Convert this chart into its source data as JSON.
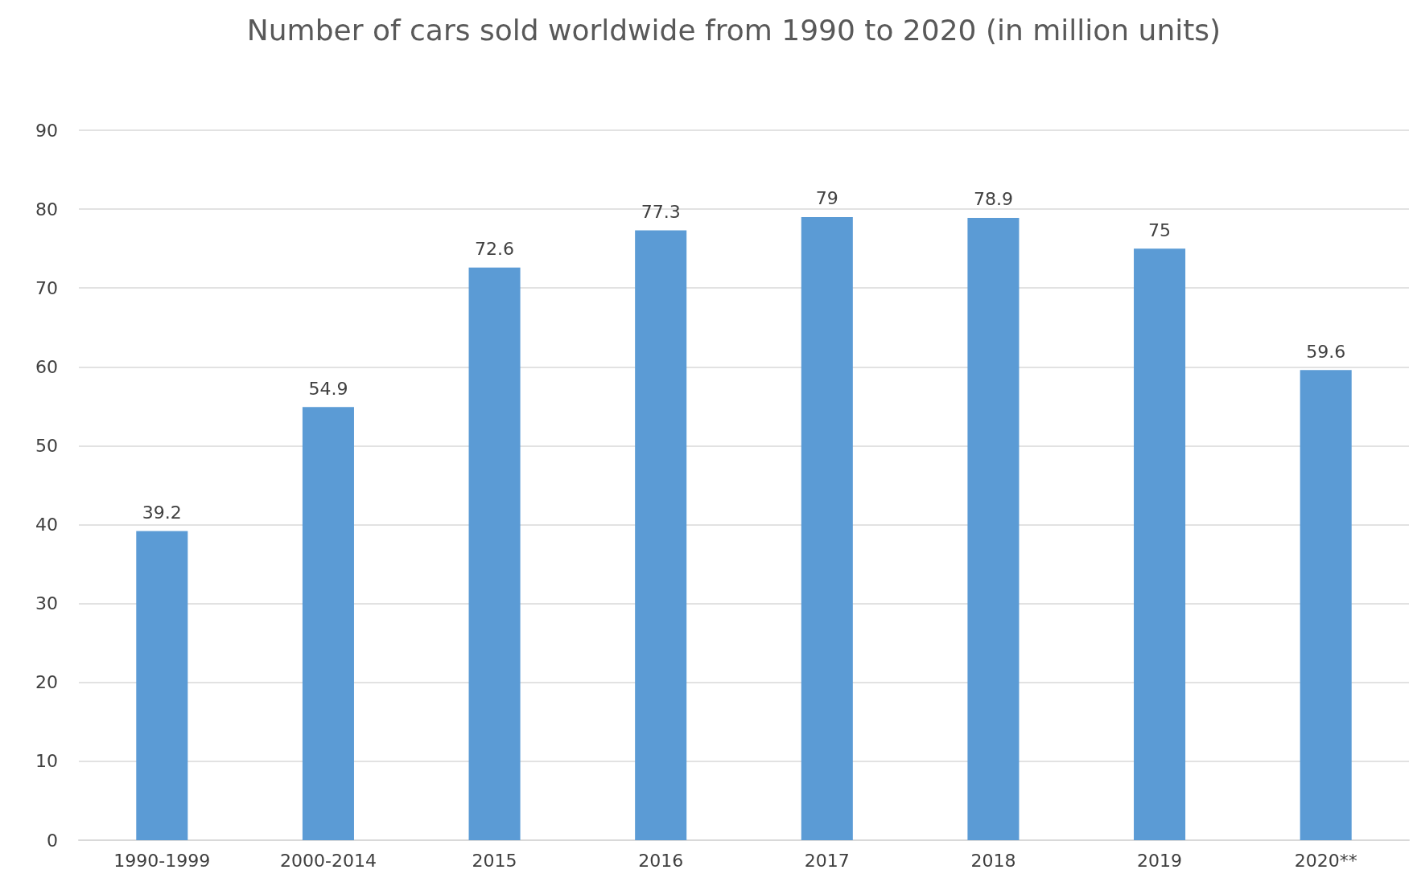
{
  "chart_data": {
    "type": "bar",
    "title": "Number of cars sold worldwide from 1990 to 2020 (in million units)",
    "categories": [
      "1990-1999",
      "2000-2014",
      "2015",
      "2016",
      "2017",
      "2018",
      "2019",
      "2020**"
    ],
    "series": [
      {
        "color": "#5b9bd5",
        "values": [
          39.2,
          54.9,
          72.6,
          77.3,
          79,
          78.9,
          75,
          59.6
        ]
      }
    ],
    "ylim": [
      0,
      90
    ],
    "yticks": [
      0,
      10,
      20,
      30,
      40,
      50,
      60,
      70,
      80,
      90
    ],
    "grid": "y",
    "data_labels": true
  }
}
